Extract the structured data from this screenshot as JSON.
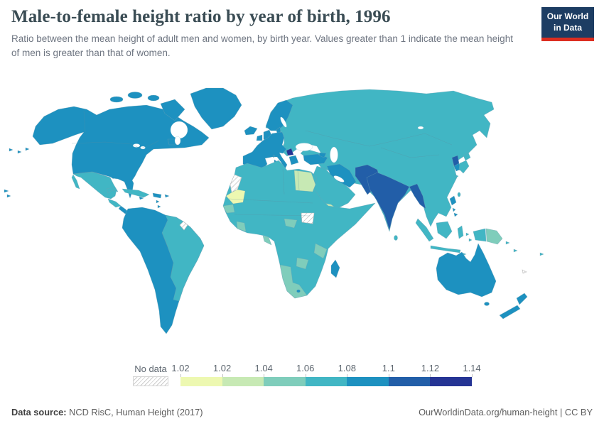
{
  "header": {
    "title": "Male-to-female height ratio by year of birth, 1996",
    "subtitle": "Ratio between the mean height of adult men and women, by birth year. Values greater than 1 indicate the mean height of men is greater than that of women.",
    "logo": {
      "line1": "Our World",
      "line2": "in Data",
      "bg_color": "#1d3d63",
      "accent_color": "#dc2d20"
    }
  },
  "legend": {
    "no_data_label": "No data",
    "ticks": [
      "1.02",
      "1.02",
      "1.04",
      "1.06",
      "1.08",
      "1.1",
      "1.12",
      "1.14"
    ],
    "bin_colors": [
      "#edf8b1",
      "#c7e9b4",
      "#7fcdbb",
      "#41b6c4",
      "#1d91c0",
      "#225ea8",
      "#253494"
    ]
  },
  "map": {
    "palette": {
      "bin1": "#edf8b1",
      "bin2": "#c7e9b4",
      "bin3": "#7fcdbb",
      "bin4": "#41b6c4",
      "bin5": "#1d91c0",
      "bin6": "#225ea8",
      "bin7": "#253494"
    }
  },
  "footer": {
    "data_source_label": "Data source:",
    "data_source_value": "NCD RisC, Human Height (2017)",
    "link_text": "OurWorldinData.org/human-height | CC BY"
  },
  "chart_data": {
    "type": "heatmap",
    "subtype": "choropleth-world-map",
    "title": "Male-to-female height ratio by year of birth, 1996",
    "unit": "height ratio (men/women)",
    "legend_ticks": [
      1.02,
      1.02,
      1.04,
      1.06,
      1.08,
      1.1,
      1.12,
      1.14
    ],
    "legend_position": "bottom",
    "bins": [
      {
        "range": "<= 1.02",
        "color": "#edf8b1"
      },
      {
        "range": "1.02 - 1.04",
        "color": "#c7e9b4"
      },
      {
        "range": "1.04 - 1.06",
        "color": "#7fcdbb"
      },
      {
        "range": "1.06 - 1.08",
        "color": "#41b6c4"
      },
      {
        "range": "1.08 - 1.1",
        "color": "#1d91c0"
      },
      {
        "range": "1.1 - 1.12",
        "color": "#225ea8"
      },
      {
        "range": "1.12 - 1.14",
        "color": "#253494"
      }
    ],
    "regions_by_bin": {
      "<= 1.02": [
        "Mauritania"
      ],
      "1.02 - 1.04": [
        "Egypt",
        "Yemen"
      ],
      "1.04 - 1.06": [
        "Senegal",
        "Guinea",
        "Ghana",
        "Cote d'Ivoire",
        "Cameroon",
        "Gabon",
        "Central African Republic",
        "Tanzania",
        "Zambia",
        "Namibia",
        "South Africa",
        "Papua New Guinea"
      ],
      "1.06 - 1.08": [
        "Russia",
        "China",
        "Kazakhstan",
        "Mongolia",
        "Eastern Europe",
        "Finland",
        "Saudi Arabia",
        "North Africa",
        "Sahel",
        "Sudan",
        "Somalia",
        "Brazil",
        "Mexico",
        "Cuba",
        "Guatemala",
        "Indonesia",
        "Japan",
        "Thailand",
        "Vietnam"
      ],
      "1.08 - 1.1": [
        "United States",
        "Canada",
        "Greenland",
        "United Kingdom",
        "Ireland",
        "Iceland",
        "France",
        "Spain",
        "Portugal",
        "Germany",
        "Italy",
        "Greece",
        "Norway",
        "Sweden",
        "Denmark",
        "Turkey",
        "Iran",
        "Colombia",
        "Venezuela",
        "Peru",
        "Bolivia",
        "Chile",
        "Argentina",
        "Madagascar",
        "Australia",
        "New Zealand",
        "Philippines",
        "South Korea"
      ],
      "1.1 - 1.12": [
        "India",
        "Pakistan",
        "Afghanistan",
        "Bangladesh",
        "Myanmar",
        "North Korea",
        "Bosnia region"
      ],
      "1.12 - 1.14": [
        "Montenegro area (Balkans)"
      ],
      "no_data": [
        "Western Sahara",
        "South Sudan",
        "French Guiana",
        "New Caledonia"
      ]
    }
  }
}
